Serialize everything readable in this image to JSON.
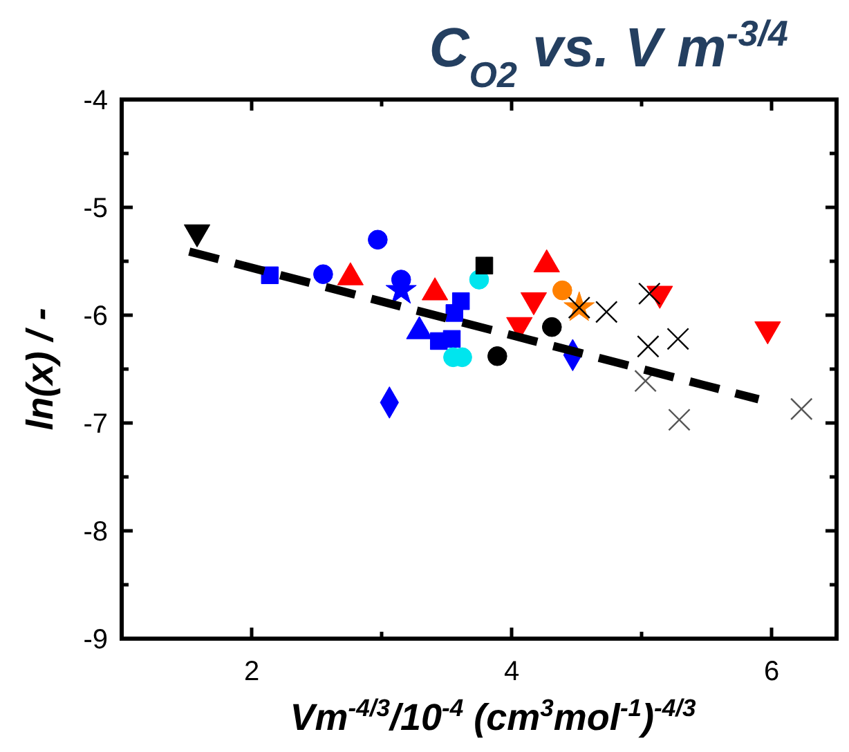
{
  "chart_data": {
    "type": "scatter",
    "title": "C$_{O2}$ vs. V m$^{-3/4}$",
    "xlabel": "Vm$^{-4/3}$/10$^{-4}$ (cm$^{3}$mol$^{-1}$)$^{-4/3}$",
    "ylabel": "ln(x) / -",
    "xlim": [
      1,
      6.5
    ],
    "xticks": [
      2,
      {
        "value": 3,
        "label": null
      },
      4,
      {
        "value": 5,
        "label": null
      },
      6
    ],
    "ylim": [
      -9,
      -4
    ],
    "yticks": [
      -9,
      {
        "value": -8.5,
        "label": null
      },
      -8,
      {
        "value": -7.5,
        "label": null
      },
      -7,
      {
        "value": -6.5,
        "label": null
      },
      -6,
      {
        "value": -5.5,
        "label": null
      },
      -5,
      {
        "value": -4.5,
        "label": null
      },
      -4
    ],
    "grid": false,
    "series": [
      {
        "color": "#000000",
        "marker": "triangle-down",
        "x": [
          1.58
        ],
        "values": [
          -5.23
        ]
      },
      {
        "color": "#0000ff",
        "marker": "square",
        "x": [
          2.14,
          3.61,
          3.56,
          3.54,
          3.44
        ],
        "values": [
          -5.63,
          -5.87,
          -5.98,
          -6.22,
          -6.24
        ]
      },
      {
        "color": "#0000ff",
        "marker": "circle",
        "x": [
          2.55,
          3.15
        ],
        "values": [
          -5.62,
          -5.67
        ]
      },
      {
        "color": "#ff0000",
        "marker": "triangle",
        "x": [
          2.76,
          3.41,
          4.27
        ],
        "values": [
          -5.65,
          -5.79,
          -5.53
        ]
      },
      {
        "color": "#0000ff",
        "marker": "circle",
        "x": [
          2.97
        ],
        "values": [
          -5.3
        ]
      },
      {
        "color": "#0000ff",
        "marker": "star",
        "x": [
          3.15
        ],
        "values": [
          -5.77
        ]
      },
      {
        "color": "#0000ff",
        "marker": "triangle",
        "x": [
          3.29
        ],
        "values": [
          -6.15
        ]
      },
      {
        "color": "#00e5ee",
        "marker": "circle",
        "x": [
          3.55,
          3.62,
          3.75
        ],
        "values": [
          -6.39,
          -6.39,
          -5.67
        ]
      },
      {
        "color": "#0000ff",
        "marker": "diamond",
        "x": [
          3.06,
          4.47
        ],
        "values": [
          -6.81,
          -6.37
        ]
      },
      {
        "color": "#000000",
        "marker": "square",
        "x": [
          3.79
        ],
        "values": [
          -5.54
        ]
      },
      {
        "color": "#ff0000",
        "marker": "triangle-down",
        "x": [
          4.17,
          4.06,
          5.14,
          5.97
        ],
        "values": [
          -5.86,
          -6.09,
          -5.8,
          -6.13
        ]
      },
      {
        "color": "#000000",
        "marker": "circle",
        "x": [
          4.31,
          3.89
        ],
        "values": [
          -6.11,
          -6.38
        ]
      },
      {
        "color": "#ff8000",
        "marker": "circle",
        "x": [
          4.39
        ],
        "values": [
          -5.77
        ]
      },
      {
        "color": "#ff8000",
        "marker": "star",
        "x": [
          4.52
        ],
        "values": [
          -5.93
        ]
      },
      {
        "color": "#000000",
        "marker": "cross",
        "x": [
          4.52,
          4.73,
          5.06
        ],
        "values": [
          -5.93,
          -5.97,
          -5.8
        ]
      },
      {
        "color": "#000000",
        "marker": "cross",
        "x": [
          5.05,
          5.28
        ],
        "values": [
          -6.29,
          -6.22
        ]
      },
      {
        "color": "#555555",
        "marker": "cross",
        "x": [
          5.03,
          5.29,
          6.23
        ],
        "values": [
          -6.61,
          -6.97,
          -6.87
        ]
      },
      {
        "type": "line",
        "color": "#000000",
        "line_style": "dashed",
        "x": [
          1.52,
          5.9
        ],
        "values": [
          -5.41,
          -6.78
        ]
      }
    ]
  }
}
